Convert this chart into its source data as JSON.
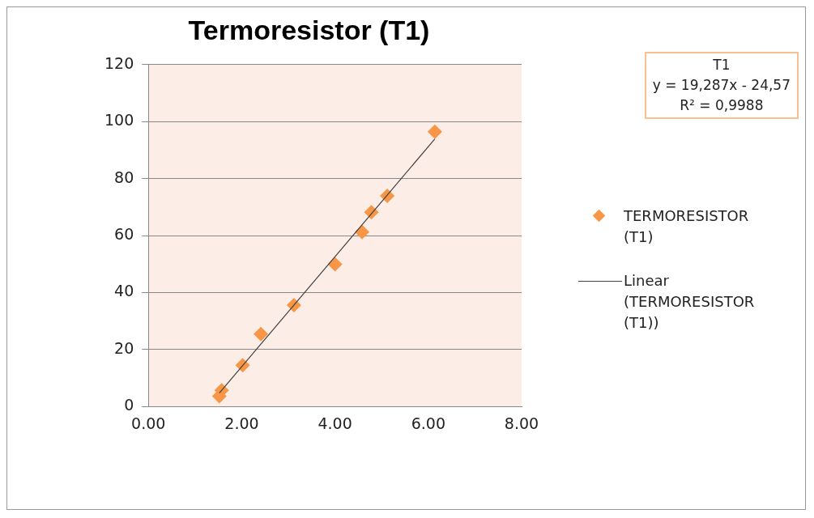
{
  "chart_data": {
    "type": "scatter",
    "title": "Termoresistor (T1)",
    "marker": "diamond",
    "grid": "y",
    "legend": "right",
    "xlim": [
      0,
      8
    ],
    "xticks": [
      {
        "value": 0,
        "label": "0.00"
      },
      {
        "value": 2,
        "label": "2.00"
      },
      {
        "value": 4,
        "label": "4.00"
      },
      {
        "value": 6,
        "label": "6.00"
      },
      {
        "value": 8,
        "label": "8.00"
      }
    ],
    "ylim": [
      0,
      120
    ],
    "yticks": [
      0,
      20,
      40,
      60,
      80,
      100,
      120
    ],
    "series": [
      {
        "name": "TERMORESISTOR (T1)",
        "color": "#f79646",
        "x": [
          1.52,
          1.57,
          2.02,
          2.41,
          3.12,
          4.0,
          4.58,
          4.78,
          5.12,
          6.14
        ],
        "values": [
          3.6,
          5.7,
          14.5,
          25.4,
          35.6,
          49.9,
          61.2,
          68.2,
          73.9,
          96.4
        ]
      },
      {
        "name": "Linear (TERMORESISTOR (T1))",
        "type": "line",
        "marker": "none",
        "line_style": "solid",
        "color": "#404040",
        "x": [
          1.52,
          6.14
        ],
        "values": [
          4.7,
          93.9
        ]
      }
    ],
    "annotations": [
      "T1",
      "y = 19,287x - 24,57",
      "R² = 0,9988"
    ]
  }
}
